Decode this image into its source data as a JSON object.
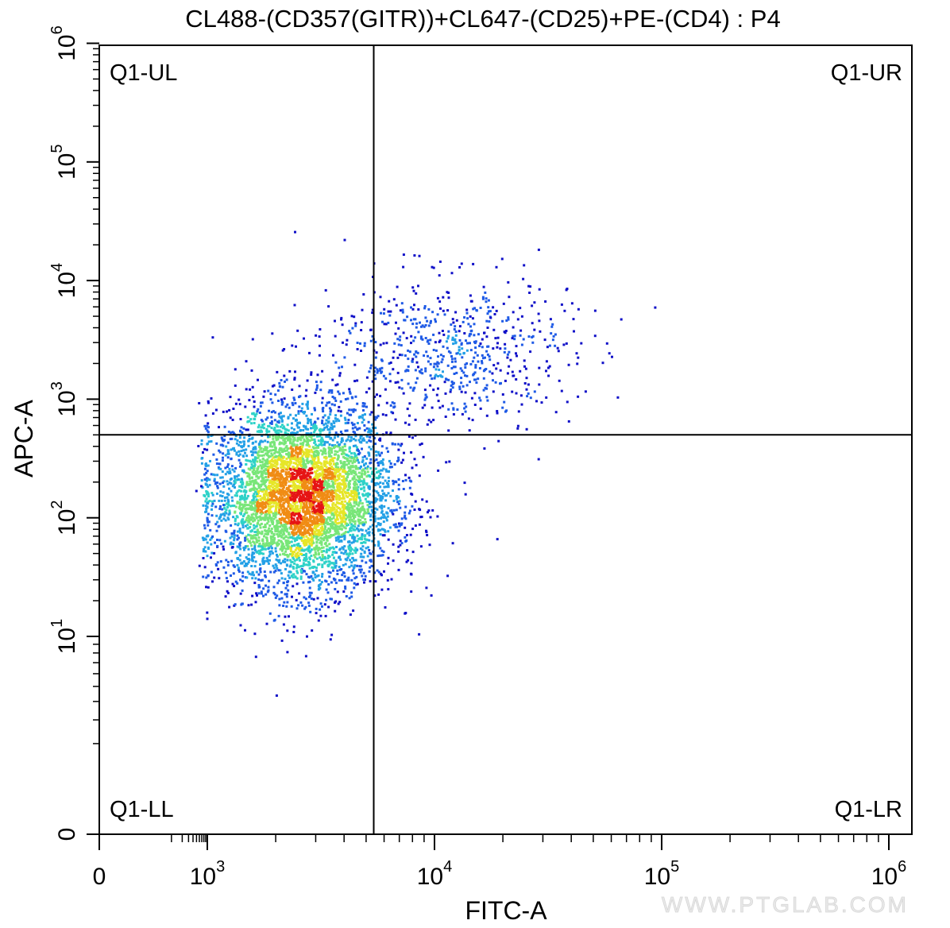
{
  "chart_data": {
    "type": "scatter",
    "subtype": "flow-cytometry-density-dot-plot",
    "title": "CL488-(CD357(GITR))+CL647-(CD25)+PE-(CD4) : P4",
    "xlabel": "FITC-A",
    "ylabel": "APC-A",
    "x_scale": "biexponential (linear near 0, log above ~10^3)",
    "y_scale": "biexponential (linear near 0, log above ~10^1)",
    "xlim": [
      0,
      1000000
    ],
    "ylim": [
      0,
      1000000
    ],
    "x_ticks": [
      {
        "base": "0",
        "exp": "",
        "value": 0
      },
      {
        "base": "10",
        "exp": "3",
        "value": 1000
      },
      {
        "base": "10",
        "exp": "4",
        "value": 10000
      },
      {
        "base": "10",
        "exp": "5",
        "value": 100000
      },
      {
        "base": "10",
        "exp": "6",
        "value": 1000000
      }
    ],
    "y_ticks": [
      {
        "base": "0",
        "exp": "",
        "value": 0
      },
      {
        "base": "10",
        "exp": "1",
        "value": 10
      },
      {
        "base": "10",
        "exp": "2",
        "value": 100
      },
      {
        "base": "10",
        "exp": "3",
        "value": 1000
      },
      {
        "base": "10",
        "exp": "4",
        "value": 10000
      },
      {
        "base": "10",
        "exp": "5",
        "value": 100000
      },
      {
        "base": "10",
        "exp": "6",
        "value": 1000000
      }
    ],
    "quadrant_gate": {
      "x": 5400,
      "y": 500
    },
    "quadrants": [
      {
        "label": "Q1-UL",
        "position": "top-left"
      },
      {
        "label": "Q1-UR",
        "position": "top-right"
      },
      {
        "label": "Q1-LL",
        "position": "bottom-left"
      },
      {
        "label": "Q1-LR",
        "position": "bottom-right"
      }
    ],
    "populations": [
      {
        "description": "main CD25- population",
        "x_center": 2600,
        "y_center": 150,
        "x_spread": 0.2,
        "y_spread": 0.38,
        "count": 5200
      },
      {
        "description": "GITR+ CD25+ population",
        "x_center": 11000,
        "y_center": 2500,
        "x_spread": 0.28,
        "y_spread": 0.32,
        "count": 700
      }
    ],
    "grid": false,
    "density_colors": [
      "#1010c8",
      "#1e5ae6",
      "#23a0e6",
      "#2ed2c8",
      "#78e678",
      "#e6e628",
      "#f08c14",
      "#e61414"
    ]
  },
  "watermark": "WWW.PTGLAB.COM"
}
